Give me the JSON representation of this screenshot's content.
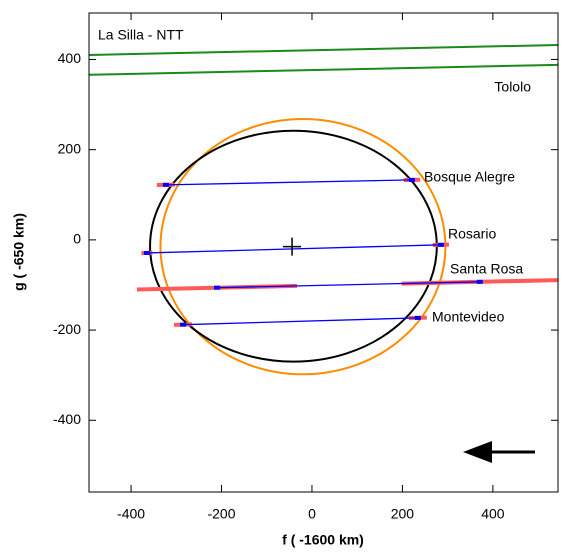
{
  "chart_data": {
    "type": "chord",
    "xlabel": "f ( -1600 km)",
    "ylabel": "g ( -650 km)",
    "xlim": [
      -493,
      544
    ],
    "ylim": [
      -559,
      503
    ],
    "xticks": [
      -400,
      -200,
      0,
      200,
      400
    ],
    "yticks": [
      -400,
      -200,
      0,
      200,
      400
    ],
    "grazing": [
      {
        "name": "La Silla - NTT",
        "color": "#1a8a1a",
        "x": [
          -493,
          544
        ],
        "y": [
          410,
          432
        ]
      },
      {
        "name": "Tololo",
        "color": "#1a8a1a",
        "x": [
          -493,
          544
        ],
        "y": [
          366,
          388
        ]
      }
    ],
    "chords": [
      {
        "name": "Bosque Alegre",
        "x": [
          -323,
          221
        ],
        "y": [
          122,
          133
        ],
        "err": [
          20,
          18
        ]
      },
      {
        "name": "Rosario",
        "x": [
          -365,
          285
        ],
        "y": [
          -29,
          -11
        ],
        "err": [
          12,
          18
        ]
      },
      {
        "name": "Santa Rosa",
        "x": [
          -210,
          371
        ],
        "y": [
          -106,
          -93
        ],
        "err": [
          177,
          173
        ]
      },
      {
        "name": "Montevideo",
        "x": [
          -285,
          234
        ],
        "y": [
          -188,
          -173
        ],
        "err": [
          20,
          20
        ]
      }
    ],
    "chord_color": "#0000ff",
    "err_color": "#ff5a5a",
    "ellipses": [
      {
        "color": "#ff8c00",
        "cx": -20,
        "cy": -15,
        "rx": 315,
        "ry": 283
      },
      {
        "color": "#000000",
        "cx": -41,
        "cy": -14,
        "rx": 317,
        "ry": 256
      }
    ],
    "center": {
      "x": -44,
      "y": -15
    }
  }
}
